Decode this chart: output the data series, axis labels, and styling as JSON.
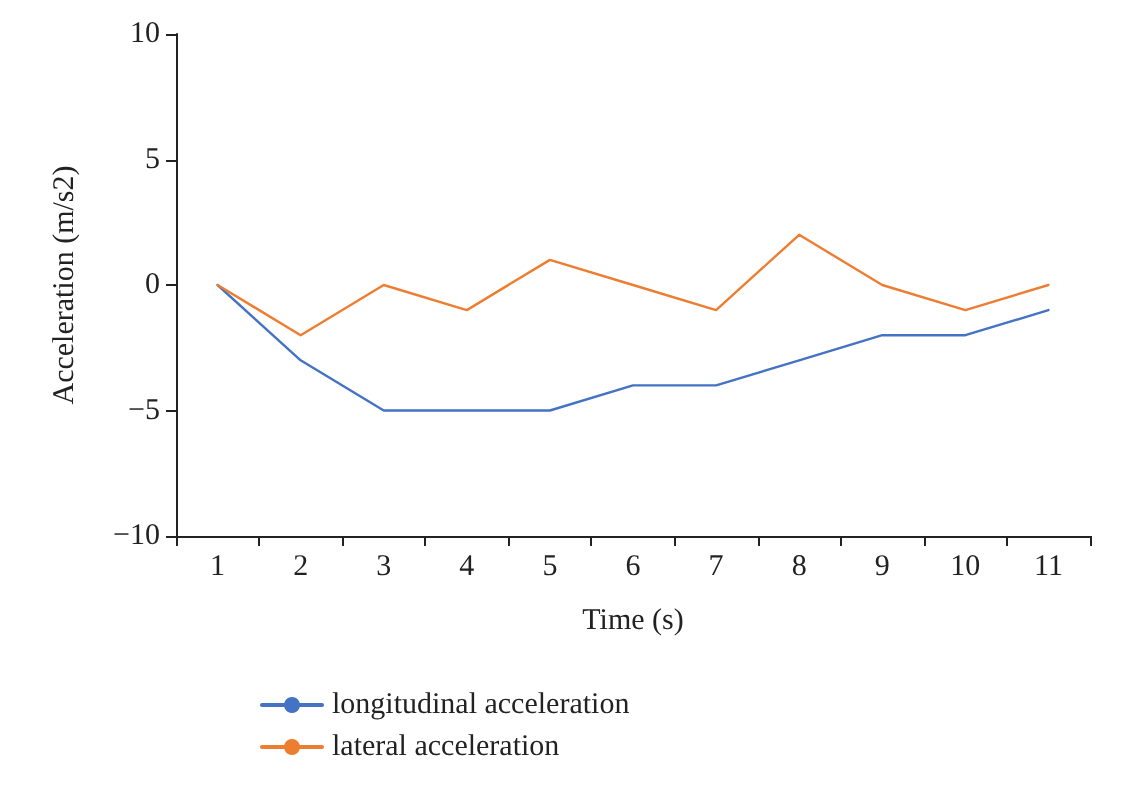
{
  "chart_data": {
    "type": "line",
    "xlabel": "Time (s)",
    "ylabel": "Acceleration (m/s2)",
    "categories": [
      "1",
      "2",
      "3",
      "4",
      "5",
      "6",
      "7",
      "8",
      "9",
      "10",
      "11"
    ],
    "series": [
      {
        "name": "longitudinal acceleration",
        "color": "#4472c4",
        "values": [
          0,
          -3,
          -5,
          -5,
          -5,
          -4,
          -4,
          -3,
          -2,
          -2,
          -1
        ]
      },
      {
        "name": "lateral acceleration",
        "color": "#ed7d31",
        "values": [
          0,
          -2,
          0,
          -1,
          1,
          0,
          -1,
          2,
          0,
          -1,
          0
        ]
      }
    ],
    "ylim": [
      -10,
      10
    ],
    "yticks": [
      {
        "value": -10,
        "label": "−10"
      },
      {
        "value": -5,
        "label": "−5"
      },
      0,
      5,
      10
    ],
    "grid": false,
    "legend": "bottom left",
    "marker": "none",
    "line_style": "solid"
  }
}
